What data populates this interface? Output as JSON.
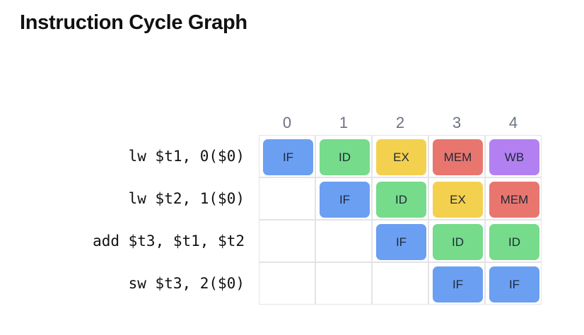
{
  "title": "Instruction Cycle Graph",
  "columns": [
    "0",
    "1",
    "2",
    "3",
    "4"
  ],
  "stage_colors": {
    "IF": "#6b9ff2",
    "ID": "#76db8b",
    "EX": "#f4d04f",
    "MEM": "#e8766f",
    "WB": "#b380f2"
  },
  "rows": [
    {
      "instruction": "lw $t1, 0($0)",
      "stages": [
        "IF",
        "ID",
        "EX",
        "MEM",
        "WB"
      ]
    },
    {
      "instruction": "lw $t2, 1($0)",
      "stages": [
        "",
        "IF",
        "ID",
        "EX",
        "MEM"
      ]
    },
    {
      "instruction": "add $t3, $t1, $t2",
      "stages": [
        "",
        "",
        "IF",
        "ID",
        "ID"
      ]
    },
    {
      "instruction": "sw $t3, 2($0)",
      "stages": [
        "",
        "",
        "",
        "IF",
        "IF"
      ]
    }
  ]
}
